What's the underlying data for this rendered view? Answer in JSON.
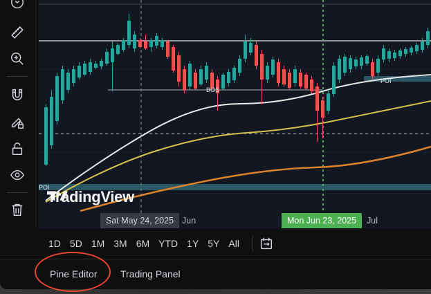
{
  "toolbar": {
    "tools": [
      {
        "name": "ruler-icon"
      },
      {
        "name": "zoom-in-icon"
      },
      {
        "name": "magnet-icon"
      },
      {
        "name": "lock-pencil-icon"
      },
      {
        "name": "lock-icon"
      },
      {
        "name": "eye-icon"
      },
      {
        "name": "trash-icon"
      }
    ]
  },
  "chart": {
    "watermark": "TradingView",
    "crosshair_date_label": "Sat May 24, 2025",
    "active_date_label": "Mon Jun 23, 2025",
    "month_labels": [
      "Jun",
      "Jul"
    ],
    "markers": [
      "BOS",
      "POI",
      "POI"
    ],
    "colors": {
      "bullish": "#26a69a",
      "bearish": "#ef5350",
      "white_ma": "#e6e6e6",
      "yellow_ma": "#d4c04a",
      "orange_ma": "#d9822b",
      "zone": "#4aa3b5",
      "active_line": "#4caf50"
    }
  },
  "range_bar": {
    "buttons": [
      "1D",
      "5D",
      "1M",
      "3M",
      "6M",
      "YTD",
      "1Y",
      "5Y",
      "All"
    ],
    "compare_icon": "compare-icon"
  },
  "panel_bar": {
    "tabs": [
      "Pine Editor",
      "Trading Panel"
    ]
  }
}
